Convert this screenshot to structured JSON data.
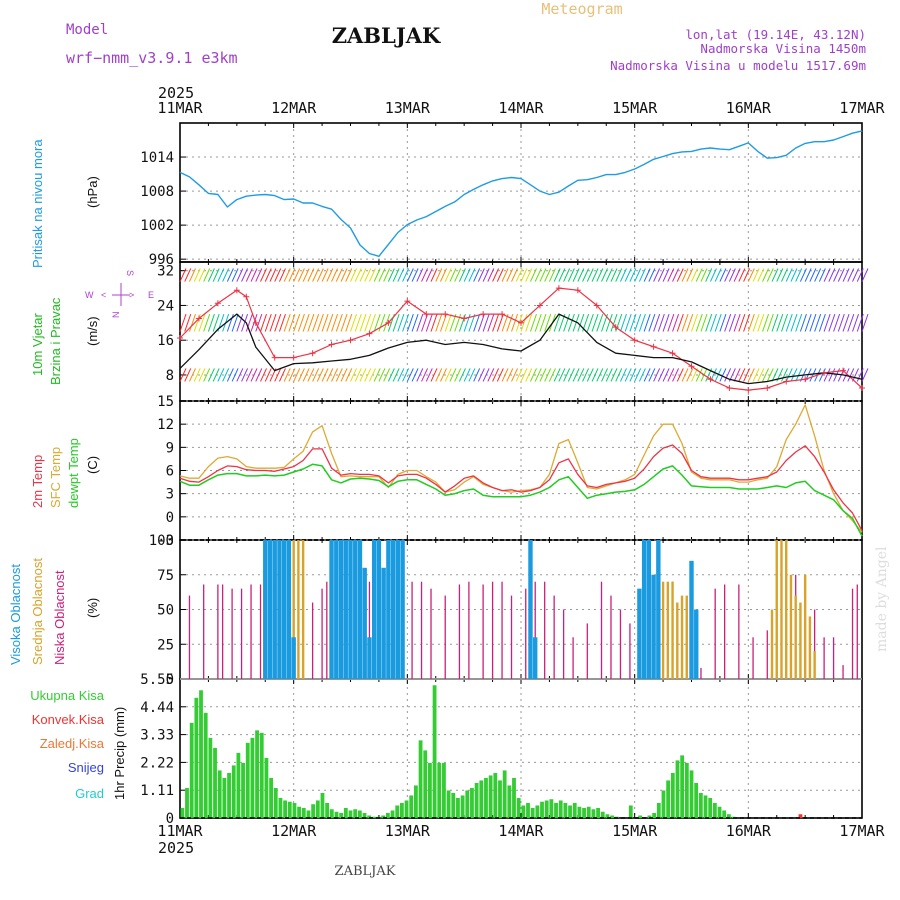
{
  "header": {
    "model_label": "Model",
    "model_name": "wrf−nmm_v3.9.1  e3km",
    "station": "ZABLJAK",
    "product": "Meteogram",
    "lonlat": "lon,lat (19.14E, 43.12N)",
    "elevation": "Nadmorska Visina 1450m",
    "model_elevation": "Nadmorska Visina u modelu 1517.69m",
    "footer_station": "ZABLJAK",
    "credit": "made by Angel"
  },
  "colors": {
    "pressure": "#1e9be6",
    "wind_label": "#22bb22",
    "temp2m": "#ee3344",
    "sfc": "#ddaa33",
    "dewpt": "#22cc22",
    "high_cloud": "#1a9be0",
    "mid_cloud": "#d9a22a",
    "low_cloud": "#cc1f77",
    "precip_total": "#33cc33",
    "precip_conv": "#ee3333",
    "precip_frz": "#ee7733",
    "precip_snow": "#3344dd",
    "precip_graupel": "#22cccc",
    "purple": "#a040c8"
  },
  "time_axis": {
    "year": "2025",
    "days": [
      "11MAR",
      "12MAR",
      "13MAR",
      "14MAR",
      "15MAR",
      "16MAR",
      "17MAR"
    ],
    "hours_total": 144
  },
  "chart_data": [
    {
      "panel": "pressure",
      "type": "line",
      "ylabel_main": "Pritisak na nivou mora",
      "ylabel_unit": "(hPa)",
      "ylim": [
        995.5,
        1020
      ],
      "yticks": [
        996,
        1002,
        1008,
        1014
      ],
      "x_hours": [
        0,
        2,
        4,
        6,
        8,
        10,
        12,
        14,
        16,
        18,
        20,
        22,
        24,
        26,
        28,
        30,
        32,
        34,
        36,
        38,
        40,
        42,
        44,
        46,
        48,
        50,
        52,
        54,
        56,
        58,
        60,
        62,
        64,
        66,
        68,
        70,
        72,
        74,
        76,
        78,
        80,
        82,
        84,
        86,
        88,
        90,
        92,
        94,
        96,
        98,
        100,
        102,
        104,
        106,
        108,
        110,
        112,
        114,
        116,
        118,
        120,
        122,
        124,
        126,
        128,
        130,
        132,
        134,
        136,
        138,
        140,
        142,
        144
      ],
      "values": [
        1011.3,
        1010.5,
        1009.1,
        1007.6,
        1007.4,
        1005.2,
        1006.5,
        1007.1,
        1007.3,
        1007.4,
        1007.2,
        1006.5,
        1006.6,
        1005.9,
        1005.9,
        1005.3,
        1004.8,
        1003.0,
        1001.5,
        998.5,
        997.0,
        996.5,
        998.6,
        1000.7,
        1002.1,
        1002.9,
        1003.5,
        1004.4,
        1005.3,
        1006.1,
        1007.4,
        1008.3,
        1009.1,
        1009.8,
        1010.2,
        1010.4,
        1010.2,
        1009.1,
        1008.0,
        1007.4,
        1007.8,
        1008.9,
        1009.9,
        1010.0,
        1010.4,
        1010.9,
        1010.9,
        1011.3,
        1011.9,
        1012.7,
        1013.6,
        1014.1,
        1014.6,
        1014.9,
        1015.0,
        1015.4,
        1015.6,
        1015.4,
        1015.3,
        1015.9,
        1016.5,
        1015.0,
        1013.8,
        1013.9,
        1014.3,
        1015.6,
        1016.4,
        1016.7,
        1016.7,
        1017.0,
        1017.6,
        1018.2,
        1018.6
      ]
    },
    {
      "panel": "wind",
      "type": "line",
      "ylabel_main": "10m Vjetar",
      "ylabel_sub": "Brzina i Pravac",
      "ylabel_unit": "(m/s)",
      "direction_legend": [
        "W",
        "<",
        "S",
        "N",
        ">",
        "E"
      ],
      "ylim": [
        2,
        34
      ],
      "yticks": [
        8,
        16,
        24,
        32
      ],
      "x_hours": [
        0,
        4,
        8,
        12,
        14,
        16,
        20,
        24,
        28,
        32,
        36,
        40,
        44,
        48,
        52,
        56,
        60,
        64,
        68,
        72,
        76,
        80,
        84,
        88,
        92,
        96,
        100,
        104,
        108,
        112,
        116,
        120,
        124,
        128,
        132,
        136,
        140,
        144
      ],
      "speed": [
        9.5,
        13.8,
        18.5,
        22.0,
        20.0,
        14.4,
        9.0,
        10.6,
        10.8,
        11.2,
        11.6,
        12.5,
        14.2,
        15.5,
        16.0,
        15.0,
        15.5,
        15.0,
        14.0,
        13.5,
        16.0,
        22.0,
        20.0,
        15.5,
        13.0,
        12.5,
        12.0,
        12.0,
        11.0,
        9.0,
        7.0,
        6.0,
        6.5,
        7.5,
        8.0,
        8.5,
        8.0,
        7.0
      ],
      "gust": [
        16.5,
        21.0,
        24.5,
        27.5,
        26.0,
        20.0,
        12.0,
        12.0,
        13.0,
        15.0,
        16.0,
        17.5,
        20.0,
        25.0,
        22.0,
        22.0,
        21.0,
        22.0,
        22.0,
        20.0,
        24.0,
        28.0,
        27.5,
        24.0,
        19.0,
        16.0,
        14.5,
        13.0,
        10.0,
        7.0,
        5.0,
        4.5,
        5.0,
        6.5,
        7.0,
        8.5,
        9.0,
        5.0
      ]
    },
    {
      "panel": "temperature",
      "type": "line",
      "ylabel_main": "2m Temp",
      "ylabel_sfc": "SFC Temp",
      "ylabel_dew": "dewpt Temp",
      "ylabel_unit": "(C)",
      "ylim": [
        -3,
        15
      ],
      "yticks": [
        -3,
        0,
        3,
        6,
        9,
        12,
        15
      ],
      "x_hours": [
        0,
        2,
        4,
        6,
        8,
        10,
        12,
        14,
        16,
        18,
        20,
        22,
        24,
        26,
        28,
        30,
        32,
        34,
        36,
        38,
        40,
        42,
        44,
        46,
        48,
        50,
        52,
        54,
        56,
        58,
        60,
        62,
        64,
        66,
        68,
        70,
        72,
        74,
        76,
        78,
        80,
        82,
        84,
        86,
        88,
        90,
        92,
        94,
        96,
        98,
        100,
        102,
        104,
        106,
        108,
        110,
        112,
        114,
        116,
        118,
        120,
        122,
        124,
        126,
        128,
        130,
        132,
        134,
        136,
        138,
        140,
        142,
        144
      ],
      "temp2m": [
        5.0,
        4.6,
        4.5,
        5.2,
        6.0,
        6.6,
        6.5,
        6.1,
        6.0,
        6.0,
        5.9,
        6.2,
        6.5,
        7.3,
        8.8,
        8.8,
        6.3,
        5.4,
        5.6,
        5.5,
        5.5,
        5.3,
        4.4,
        5.3,
        5.5,
        5.5,
        5.0,
        4.2,
        3.2,
        4.0,
        5.0,
        5.3,
        4.4,
        3.8,
        3.4,
        3.5,
        3.2,
        3.4,
        3.8,
        4.8,
        7.0,
        7.5,
        5.5,
        4.0,
        3.8,
        4.2,
        4.4,
        4.6,
        5.0,
        6.2,
        7.8,
        8.9,
        9.3,
        8.2,
        6.0,
        5.2,
        5.0,
        5.0,
        5.0,
        4.8,
        4.8,
        5.0,
        5.2,
        5.8,
        7.3,
        8.4,
        9.2,
        7.8,
        5.8,
        3.5,
        1.8,
        0.5,
        -1.8
      ],
      "sfc": [
        5.3,
        5.0,
        5.0,
        6.5,
        7.6,
        7.8,
        7.5,
        6.5,
        6.3,
        6.3,
        6.3,
        6.4,
        7.5,
        8.5,
        11.0,
        11.8,
        8.2,
        5.2,
        5.3,
        5.2,
        5.2,
        5.2,
        3.8,
        5.5,
        6.0,
        6.0,
        5.2,
        4.5,
        3.2,
        3.5,
        4.5,
        5.2,
        4.2,
        3.8,
        3.4,
        3.2,
        3.4,
        3.5,
        3.8,
        5.5,
        9.5,
        10.0,
        7.0,
        3.8,
        3.6,
        4.0,
        4.4,
        4.8,
        5.5,
        8.0,
        10.5,
        12.0,
        12.0,
        9.5,
        5.8,
        5.0,
        4.8,
        4.8,
        4.8,
        4.5,
        4.5,
        4.8,
        5.0,
        6.5,
        10.0,
        12.0,
        14.5,
        10.5,
        6.0,
        3.0,
        0.8,
        -0.5,
        -2.0
      ],
      "dewpt": [
        4.6,
        4.1,
        4.1,
        4.8,
        5.4,
        5.6,
        5.6,
        5.3,
        5.3,
        5.4,
        5.3,
        5.4,
        5.8,
        6.2,
        6.8,
        6.6,
        4.8,
        4.4,
        4.9,
        5.0,
        4.9,
        4.7,
        3.9,
        4.6,
        4.8,
        4.8,
        4.2,
        3.6,
        2.8,
        3.0,
        3.4,
        3.6,
        2.8,
        2.6,
        2.6,
        2.6,
        2.6,
        2.8,
        3.2,
        3.8,
        4.8,
        5.2,
        3.8,
        2.4,
        2.8,
        3.0,
        3.2,
        3.3,
        3.5,
        4.2,
        5.2,
        6.2,
        6.6,
        5.4,
        4.0,
        3.9,
        3.8,
        3.8,
        3.8,
        3.6,
        3.6,
        3.6,
        3.8,
        4.0,
        3.8,
        4.4,
        4.6,
        3.4,
        2.8,
        2.2,
        0.8,
        -0.2,
        -2.5
      ]
    },
    {
      "panel": "clouds",
      "type": "bar",
      "ylabel_high": "Visoka Oblacnost",
      "ylabel_mid": "Srednja Oblacnost",
      "ylabel_low": "Niska Oblacnost",
      "ylabel_unit": "(%)",
      "ylim": [
        0,
        100
      ],
      "yticks": [
        0,
        25,
        50,
        75,
        100
      ],
      "high": [
        [
          18,
          100
        ],
        [
          19,
          100
        ],
        [
          20,
          100
        ],
        [
          21,
          100
        ],
        [
          22,
          100
        ],
        [
          23,
          100
        ],
        [
          24,
          30
        ],
        [
          32,
          100
        ],
        [
          33,
          100
        ],
        [
          34,
          100
        ],
        [
          35,
          100
        ],
        [
          36,
          100
        ],
        [
          37,
          100
        ],
        [
          38,
          100
        ],
        [
          39,
          80
        ],
        [
          40,
          30
        ],
        [
          41,
          100
        ],
        [
          42,
          100
        ],
        [
          43,
          80
        ],
        [
          44,
          100
        ],
        [
          45,
          100
        ],
        [
          46,
          100
        ],
        [
          47,
          100
        ],
        [
          74,
          100
        ],
        [
          75,
          30
        ],
        [
          97,
          65
        ],
        [
          98,
          100
        ],
        [
          99,
          100
        ],
        [
          100,
          75
        ],
        [
          101,
          100
        ],
        [
          108,
          85
        ],
        [
          109,
          50
        ]
      ],
      "mid": [
        [
          19,
          100
        ],
        [
          21,
          100
        ],
        [
          22,
          100
        ],
        [
          23,
          100
        ],
        [
          24,
          100
        ],
        [
          25,
          100
        ],
        [
          26,
          100
        ],
        [
          39,
          30
        ],
        [
          43,
          70
        ],
        [
          97,
          5
        ],
        [
          98,
          40
        ],
        [
          99,
          60
        ],
        [
          100,
          70
        ],
        [
          101,
          60
        ],
        [
          102,
          70
        ],
        [
          103,
          70
        ],
        [
          104,
          70
        ],
        [
          105,
          55
        ],
        [
          106,
          60
        ],
        [
          107,
          60
        ],
        [
          108,
          50
        ],
        [
          125,
          50
        ],
        [
          126,
          100
        ],
        [
          127,
          100
        ],
        [
          128,
          100
        ],
        [
          129,
          75
        ],
        [
          130,
          60
        ],
        [
          131,
          55
        ],
        [
          132,
          75
        ],
        [
          133,
          45
        ],
        [
          134,
          20
        ]
      ],
      "low": [
        [
          2,
          60
        ],
        [
          5,
          68
        ],
        [
          8,
          68
        ],
        [
          9,
          68
        ],
        [
          11,
          65
        ],
        [
          13,
          65
        ],
        [
          15,
          68
        ],
        [
          17,
          68
        ],
        [
          19,
          68
        ],
        [
          20,
          62
        ],
        [
          22,
          55
        ],
        [
          24,
          68
        ],
        [
          26,
          50
        ],
        [
          28,
          55
        ],
        [
          30,
          65
        ],
        [
          31,
          70
        ],
        [
          33,
          55
        ],
        [
          35,
          60
        ],
        [
          37,
          70
        ],
        [
          40,
          70
        ],
        [
          42,
          65
        ],
        [
          44,
          48
        ],
        [
          45,
          70
        ],
        [
          46,
          35
        ],
        [
          49,
          70
        ],
        [
          51,
          70
        ],
        [
          53,
          65
        ],
        [
          56,
          60
        ],
        [
          59,
          68
        ],
        [
          61,
          70
        ],
        [
          64,
          68
        ],
        [
          66,
          70
        ],
        [
          68,
          70
        ],
        [
          70,
          60
        ],
        [
          73,
          65
        ],
        [
          75,
          70
        ],
        [
          77,
          70
        ],
        [
          79,
          60
        ],
        [
          81,
          50
        ],
        [
          83,
          30
        ],
        [
          86,
          40
        ],
        [
          89,
          70
        ],
        [
          91,
          60
        ],
        [
          93,
          50
        ],
        [
          95,
          40
        ],
        [
          97,
          5
        ],
        [
          99,
          70
        ],
        [
          100,
          8
        ],
        [
          102,
          60
        ],
        [
          104,
          70
        ],
        [
          106,
          50
        ],
        [
          110,
          8
        ],
        [
          113,
          65
        ],
        [
          115,
          68
        ],
        [
          118,
          68
        ],
        [
          121,
          30
        ],
        [
          124,
          35
        ],
        [
          126,
          40
        ],
        [
          128,
          70
        ],
        [
          130,
          75
        ],
        [
          132,
          60
        ],
        [
          134,
          50
        ],
        [
          136,
          30
        ],
        [
          138,
          30
        ],
        [
          140,
          10
        ],
        [
          142,
          65
        ],
        [
          143,
          68
        ]
      ]
    },
    {
      "panel": "precip",
      "type": "bar",
      "ylabel_main": "1hr Precip (mm)",
      "legend": [
        "Ukupna Kisa",
        "Konvek.Kisa",
        "Zaledj.Kisa",
        "Snijeg",
        "Grad"
      ],
      "ylim": [
        0,
        5.55
      ],
      "yticks": [
        1.11,
        2.22,
        3.33,
        4.44,
        5.55
      ],
      "ytick_labels": [
        "1.11",
        "2.22",
        "3.33",
        "4.44",
        "5.55"
      ],
      "total": [
        0.4,
        1.2,
        3.8,
        4.8,
        5.1,
        4.2,
        3.2,
        2.8,
        1.9,
        1.6,
        1.8,
        2.1,
        2.6,
        2.2,
        3.0,
        3.2,
        3.5,
        3.4,
        2.4,
        1.6,
        1.2,
        0.8,
        0.7,
        0.65,
        0.6,
        0.45,
        0.4,
        0.3,
        0.55,
        0.7,
        1.0,
        0.6,
        0.35,
        0.25,
        0.2,
        0.4,
        0.3,
        0.35,
        0.3,
        0.2,
        0.1,
        0.05,
        0.05,
        0.1,
        0.2,
        0.3,
        0.5,
        0.6,
        0.7,
        0.9,
        1.3,
        3.1,
        2.7,
        2.2,
        5.3,
        2.2,
        2.2,
        1.1,
        1.0,
        0.8,
        0.9,
        1.1,
        1.2,
        1.4,
        1.5,
        1.6,
        1.7,
        1.8,
        1.5,
        1.9,
        1.3,
        1.6,
        0.8,
        0.5,
        0.6,
        0.4,
        0.5,
        0.65,
        0.7,
        0.75,
        0.6,
        0.7,
        0.6,
        0.5,
        0.6,
        0.45,
        0.4,
        0.45,
        0.35,
        0.4,
        0.25,
        0.15,
        0.1,
        0.05,
        0.0,
        0.0,
        0.5,
        0.0,
        0.1,
        0.0,
        0.1,
        0.2,
        0.6,
        1.1,
        1.5,
        1.8,
        2.3,
        2.5,
        2.2,
        1.9,
        1.4,
        1.0,
        0.9,
        0.8,
        0.6,
        0.45,
        0.3,
        0.15,
        0.05,
        0,
        0,
        0,
        0,
        0,
        0,
        0,
        0,
        0,
        0,
        0,
        0,
        0,
        0,
        0,
        0,
        0,
        0,
        0,
        0,
        0,
        0,
        0,
        0,
        0,
        0,
        0
      ],
      "conv": [
        [
          131,
          0.15
        ]
      ]
    }
  ]
}
